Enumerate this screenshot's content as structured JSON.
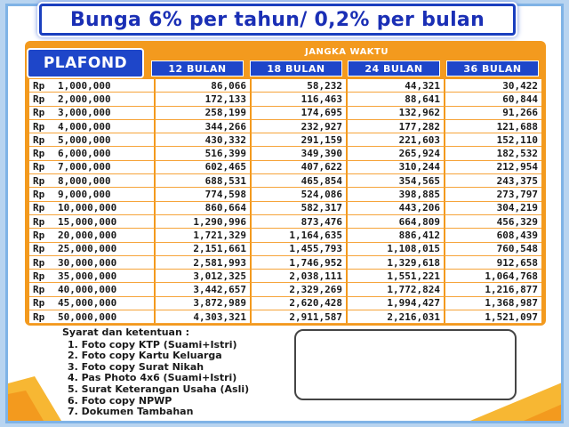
{
  "banner": {
    "title": "Bunga 6% per tahun/ 0,2% per bulan"
  },
  "table": {
    "plafond_label": "PLAFOND",
    "jangka_label": "JANGKA WAKTU",
    "currency": "Rp",
    "columns": [
      "12 BULAN",
      "18 BULAN",
      "24 BULAN",
      "36 BULAN"
    ],
    "rows": [
      {
        "plafond": "1,000,000",
        "v12": "86,066",
        "v18": "58,232",
        "v24": "44,321",
        "v36": "30,422"
      },
      {
        "plafond": "2,000,000",
        "v12": "172,133",
        "v18": "116,463",
        "v24": "88,641",
        "v36": "60,844"
      },
      {
        "plafond": "3,000,000",
        "v12": "258,199",
        "v18": "174,695",
        "v24": "132,962",
        "v36": "91,266"
      },
      {
        "plafond": "4,000,000",
        "v12": "344,266",
        "v18": "232,927",
        "v24": "177,282",
        "v36": "121,688"
      },
      {
        "plafond": "5,000,000",
        "v12": "430,332",
        "v18": "291,159",
        "v24": "221,603",
        "v36": "152,110"
      },
      {
        "plafond": "6,000,000",
        "v12": "516,399",
        "v18": "349,390",
        "v24": "265,924",
        "v36": "182,532"
      },
      {
        "plafond": "7,000,000",
        "v12": "602,465",
        "v18": "407,622",
        "v24": "310,244",
        "v36": "212,954"
      },
      {
        "plafond": "8,000,000",
        "v12": "688,531",
        "v18": "465,854",
        "v24": "354,565",
        "v36": "243,375"
      },
      {
        "plafond": "9,000,000",
        "v12": "774,598",
        "v18": "524,086",
        "v24": "398,885",
        "v36": "273,797"
      },
      {
        "plafond": "10,000,000",
        "v12": "860,664",
        "v18": "582,317",
        "v24": "443,206",
        "v36": "304,219"
      },
      {
        "plafond": "15,000,000",
        "v12": "1,290,996",
        "v18": "873,476",
        "v24": "664,809",
        "v36": "456,329"
      },
      {
        "plafond": "20,000,000",
        "v12": "1,721,329",
        "v18": "1,164,635",
        "v24": "886,412",
        "v36": "608,439"
      },
      {
        "plafond": "25,000,000",
        "v12": "2,151,661",
        "v18": "1,455,793",
        "v24": "1,108,015",
        "v36": "760,548"
      },
      {
        "plafond": "30,000,000",
        "v12": "2,581,993",
        "v18": "1,746,952",
        "v24": "1,329,618",
        "v36": "912,658"
      },
      {
        "plafond": "35,000,000",
        "v12": "3,012,325",
        "v18": "2,038,111",
        "v24": "1,551,221",
        "v36": "1,064,768"
      },
      {
        "plafond": "40,000,000",
        "v12": "3,442,657",
        "v18": "2,329,269",
        "v24": "1,772,824",
        "v36": "1,216,877"
      },
      {
        "plafond": "45,000,000",
        "v12": "3,872,989",
        "v18": "2,620,428",
        "v24": "1,994,427",
        "v36": "1,368,987"
      },
      {
        "plafond": "50,000,000",
        "v12": "4,303,321",
        "v18": "2,911,587",
        "v24": "2,216,031",
        "v36": "1,521,097"
      }
    ]
  },
  "terms": {
    "title": "Syarat dan ketentuan :",
    "items": [
      "1. Foto copy KTP (Suami+Istri)",
      "2. Foto copy Kartu Keluarga",
      "3. Foto copy Surat Nikah",
      "4. Pas Photo 4x6 (Suami+Istri)",
      "5. Surat Keterangan Usaha (Asli)",
      "6. Foto copy NPWP",
      "7. Dokumen Tambahan"
    ]
  },
  "colors": {
    "brand_blue": "#1e46c9",
    "orange": "#f39a1e",
    "banner_text": "#1a2fb5",
    "frame": "#7fb3e6"
  }
}
